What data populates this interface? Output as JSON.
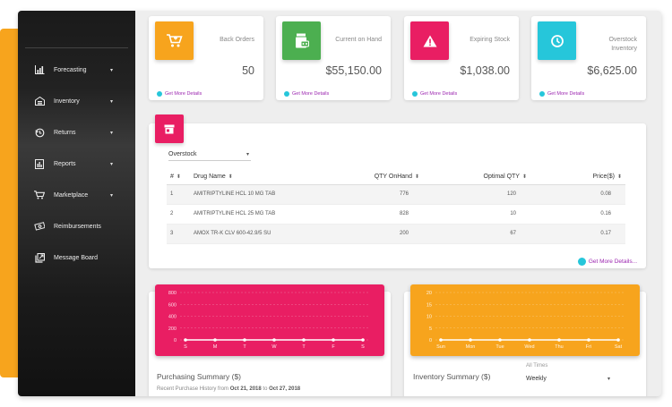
{
  "sidebar": {
    "items": [
      {
        "label": "Forecasting",
        "icon": "bar-chart-icon",
        "has_caret": true
      },
      {
        "label": "Inventory",
        "icon": "warehouse-icon",
        "has_caret": true
      },
      {
        "label": "Returns",
        "icon": "returns-icon",
        "has_caret": true
      },
      {
        "label": "Reports",
        "icon": "report-icon",
        "has_caret": true
      },
      {
        "label": "Marketplace",
        "icon": "cart-icon",
        "has_caret": true
      },
      {
        "label": "Reimbursements",
        "icon": "money-icon",
        "has_caret": false
      },
      {
        "label": "Message Board",
        "icon": "message-icon",
        "has_caret": false
      }
    ],
    "caret": "▾"
  },
  "stats": [
    {
      "title": "Back Orders",
      "value": "50",
      "link": "Get More Details",
      "color": "#f7a41d",
      "icon": "cart-icon"
    },
    {
      "title": "Current on Hand",
      "value": "$55,150.00",
      "link": "Get More Details",
      "color": "#4caf50",
      "icon": "pill-bottle-icon"
    },
    {
      "title": "Expiring Stock",
      "value": "$1,038.00",
      "link": "Get More Details",
      "color": "#e91e63",
      "icon": "warning-icon"
    },
    {
      "title": "Overstock Inventory",
      "value": "$6,625.00",
      "link": "Get More Details",
      "color": "#26c6da",
      "icon": "timer-icon"
    }
  ],
  "table": {
    "filter_value": "Overstock",
    "columns": [
      "#",
      "Drug Name",
      "QTY OnHand",
      "Optimal QTY",
      "Price($)"
    ],
    "rows": [
      [
        "1",
        "AMITRIPTYLINE HCL 10 MG TAB",
        "776",
        "120",
        "0.08"
      ],
      [
        "2",
        "AMITRIPTYLINE HCL 25 MG TAB",
        "828",
        "10",
        "0.16"
      ],
      [
        "3",
        "AMOX TR-K CLV 600-42.9/5 SU",
        "200",
        "67",
        "0.17"
      ]
    ],
    "more_link": "Get More Details..."
  },
  "purchasing": {
    "title": "Purchasing Summary ($)",
    "subtitle_prefix": "Recent Purchase History from",
    "date_from": "Oct 21, 2018",
    "date_to_word": "to",
    "date_to": "Oct 27, 2018"
  },
  "inventory_summary": {
    "title": "Inventory Summary ($)",
    "range_label": "All Times",
    "period": "Weekly"
  },
  "chart_data": [
    {
      "type": "line",
      "categories": [
        "S",
        "M",
        "T",
        "W",
        "T",
        "F",
        "S"
      ],
      "values": [
        0,
        0,
        0,
        0,
        0,
        0,
        0
      ],
      "yticks": [
        "800",
        "600",
        "400",
        "200",
        "0"
      ],
      "ylim": [
        0,
        800
      ],
      "background": "#e91e63",
      "grid": true
    },
    {
      "type": "line",
      "categories": [
        "Sun",
        "Mon",
        "Tue",
        "Wed",
        "Thu",
        "Fri",
        "Sat"
      ],
      "values": [
        0,
        0,
        0,
        0,
        0,
        0,
        0
      ],
      "yticks": [
        "20",
        "15",
        "10",
        "5",
        "0"
      ],
      "ylim": [
        0,
        20
      ],
      "background": "#f7a41d",
      "grid": true
    }
  ]
}
